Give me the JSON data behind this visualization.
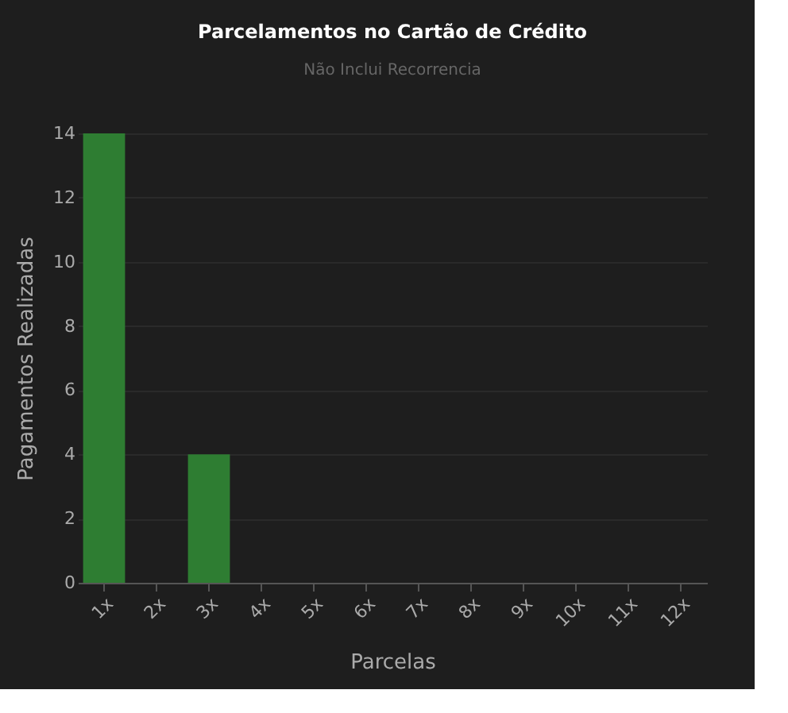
{
  "chart_data": {
    "type": "bar",
    "title": "Parcelamentos no Cartão de Crédito",
    "subtitle": "Não Inclui Recorrencia",
    "xlabel": "Parcelas",
    "ylabel": "Pagamentos Realizadas",
    "categories": [
      "1x",
      "2x",
      "3x",
      "4x",
      "5x",
      "6x",
      "7x",
      "8x",
      "9x",
      "10x",
      "11x",
      "12x"
    ],
    "values": [
      14,
      0,
      4,
      0,
      0,
      0,
      0,
      0,
      0,
      0,
      0,
      0
    ],
    "color": "#2e7d32",
    "ylim": [
      0,
      14
    ],
    "yticks": [
      0,
      2,
      4,
      6,
      8,
      10,
      12,
      14
    ],
    "grid": "y"
  }
}
